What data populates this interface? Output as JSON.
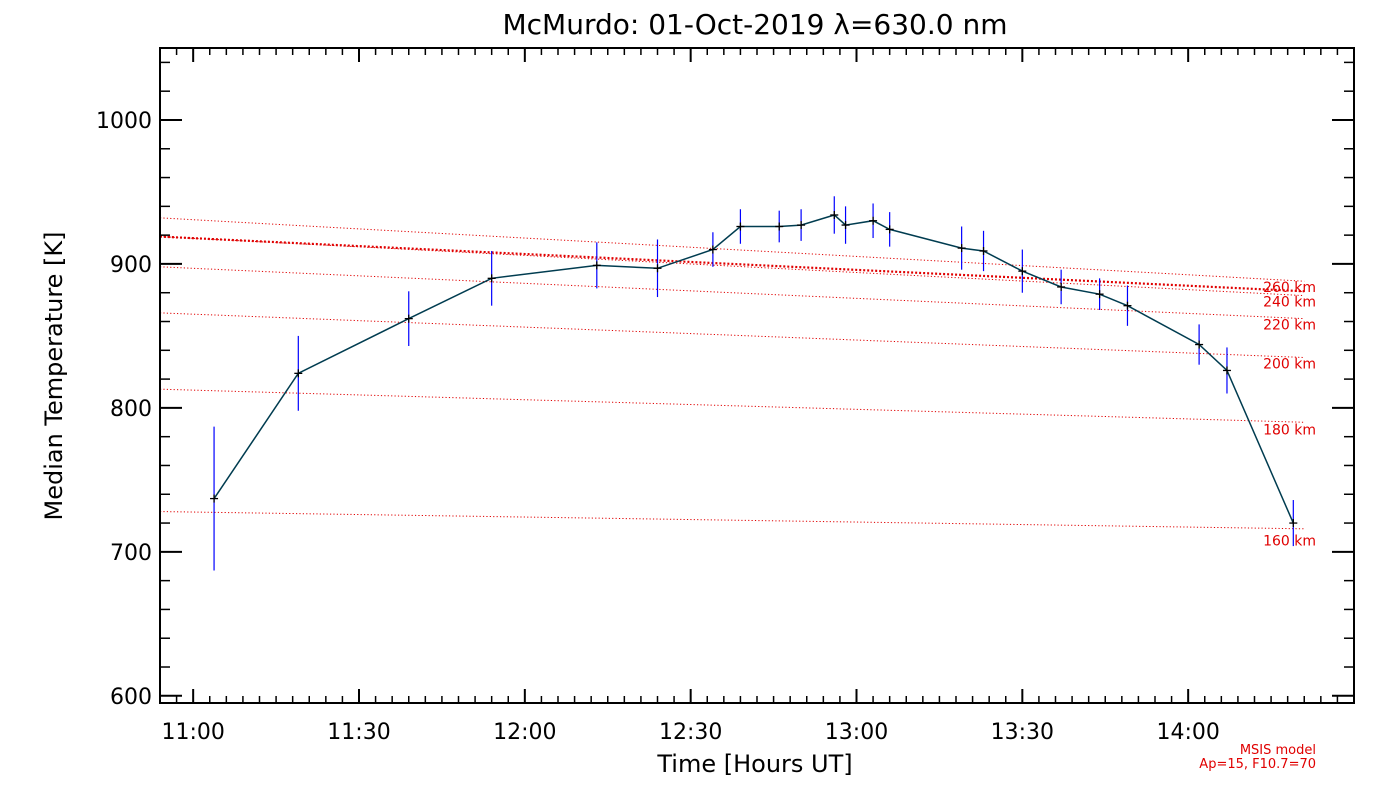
{
  "chart_data": {
    "type": "line",
    "title": "McMurdo: 01-Oct-2019 λ=630.0 nm",
    "xlabel": "Time [Hours UT]",
    "ylabel": "Median Temperature [K]",
    "xlim": [
      10.9,
      14.5
    ],
    "ylim": [
      595,
      1050
    ],
    "x_ticks": [
      {
        "value": 11.0,
        "label": "11:00"
      },
      {
        "value": 11.5,
        "label": "11:30"
      },
      {
        "value": 12.0,
        "label": "12:00"
      },
      {
        "value": 12.5,
        "label": "12:30"
      },
      {
        "value": 13.0,
        "label": "13:00"
      },
      {
        "value": 13.5,
        "label": "13:30"
      },
      {
        "value": 14.0,
        "label": "14:00"
      }
    ],
    "y_ticks": [
      {
        "value": 600,
        "label": "600"
      },
      {
        "value": 700,
        "label": "700"
      },
      {
        "value": 800,
        "label": "800"
      },
      {
        "value": 900,
        "label": "900"
      },
      {
        "value": 1000,
        "label": "1000"
      }
    ],
    "series": [
      {
        "name": "Median Temperature",
        "color": "#003c50",
        "err_color": "#0000ff",
        "points": [
          {
            "x": 11.063,
            "y": 737,
            "err": 50
          },
          {
            "x": 11.317,
            "y": 824,
            "err": 26
          },
          {
            "x": 11.65,
            "y": 862,
            "err": 19
          },
          {
            "x": 11.9,
            "y": 890,
            "err": 19
          },
          {
            "x": 12.217,
            "y": 899,
            "err": 16
          },
          {
            "x": 12.4,
            "y": 897,
            "err": 20
          },
          {
            "x": 12.567,
            "y": 910,
            "err": 12
          },
          {
            "x": 12.65,
            "y": 926,
            "err": 12
          },
          {
            "x": 12.767,
            "y": 926,
            "err": 11
          },
          {
            "x": 12.833,
            "y": 927,
            "err": 11
          },
          {
            "x": 12.933,
            "y": 934,
            "err": 13
          },
          {
            "x": 12.967,
            "y": 927,
            "err": 13
          },
          {
            "x": 13.05,
            "y": 930,
            "err": 12
          },
          {
            "x": 13.1,
            "y": 924,
            "err": 12
          },
          {
            "x": 13.317,
            "y": 911,
            "err": 15
          },
          {
            "x": 13.383,
            "y": 909,
            "err": 14
          },
          {
            "x": 13.5,
            "y": 895,
            "err": 15
          },
          {
            "x": 13.617,
            "y": 884,
            "err": 12
          },
          {
            "x": 13.733,
            "y": 879,
            "err": 11
          },
          {
            "x": 13.817,
            "y": 871,
            "err": 14
          },
          {
            "x": 14.033,
            "y": 844,
            "err": 14
          },
          {
            "x": 14.117,
            "y": 826,
            "err": 16
          },
          {
            "x": 14.317,
            "y": 720,
            "err": 16
          }
        ]
      }
    ],
    "msis_lines": [
      {
        "label": "160 km",
        "y_start": 728,
        "y_end": 716,
        "label_value": 708
      },
      {
        "label": "180 km",
        "y_start": 813,
        "y_end": 790,
        "label_value": 785
      },
      {
        "label": "200 km",
        "y_start": 866,
        "y_end": 835,
        "label_value": 831
      },
      {
        "label": "220 km",
        "y_start": 898,
        "y_end": 862,
        "label_value": 858
      },
      {
        "label": "240 km",
        "y_start": 919,
        "y_end": 878,
        "label_value": 874
      },
      {
        "label": "260 km",
        "y_start": 932,
        "y_end": 888,
        "label_value": 884
      }
    ],
    "msis_line_color": "#e00000",
    "highlight_line": {
      "y_start": 919,
      "y_end": 881,
      "color": "#e00000"
    },
    "model_note": {
      "line1": "MSIS model",
      "line2": "Ap=15, F10.7=70",
      "color": "#e00000"
    },
    "grid": false
  }
}
